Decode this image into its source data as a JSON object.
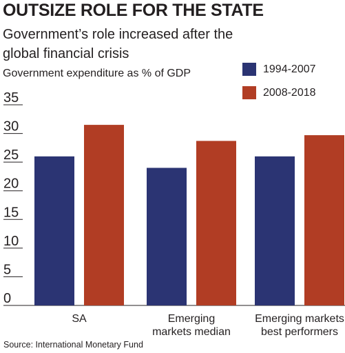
{
  "title": "OUTSIZE ROLE FOR THE STATE",
  "subtitle": "Government’s role increased after the global financial crisis",
  "source": "Source: International Monetary Fund",
  "colors": {
    "series_1": "#2b3473",
    "series_2": "#b13d24",
    "axis": "#231f20"
  },
  "chart_data": {
    "type": "bar",
    "title": "",
    "ylabel": "Government expenditure as % of GDP",
    "xlabel": "",
    "ylim": [
      0,
      35
    ],
    "yticks": [
      0,
      5,
      10,
      15,
      20,
      25,
      30,
      35
    ],
    "grid": false,
    "legend_position": "top-right",
    "categories": [
      [
        "SA"
      ],
      [
        "Emerging",
        "markets median"
      ],
      [
        "Emerging markets",
        "best performers"
      ]
    ],
    "series": [
      {
        "name": "1994-2007",
        "color": "#2b3473",
        "values": [
          26,
          24,
          26
        ]
      },
      {
        "name": "2008-2018",
        "color": "#b13d24",
        "values": [
          31.5,
          28.7,
          29.7
        ]
      }
    ]
  }
}
